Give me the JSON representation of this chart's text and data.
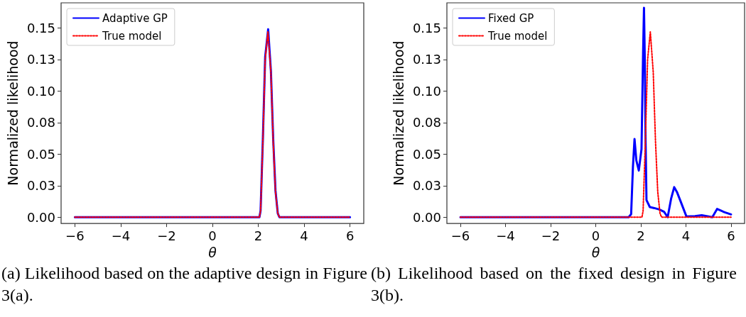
{
  "chart_data": [
    {
      "type": "line",
      "xlabel": "θ",
      "ylabel": "Normalized likelihood",
      "xlim": [
        -6.6,
        6.6
      ],
      "xticks": [
        -6,
        -4,
        -2,
        0,
        2,
        4,
        6
      ],
      "ylim": [
        -0.005,
        0.17
      ],
      "yticks": [
        {
          "value": 0,
          "label": "0.00"
        },
        {
          "value": 0.025,
          "label": "0.03"
        },
        {
          "value": 0.05,
          "label": "0.05"
        },
        {
          "value": 0.075,
          "label": "0.08"
        },
        {
          "value": 0.1,
          "label": "0.10"
        },
        {
          "value": 0.125,
          "label": "0.13"
        },
        {
          "value": 0.15,
          "label": "0.15"
        }
      ],
      "grid": false,
      "legend": "top left",
      "annotations": [
        "(a) Likelihood based on the adaptive design in Figure 3(a)."
      ],
      "series": [
        {
          "name": "Adaptive GP",
          "color": "#0000ff",
          "line_style": "solid",
          "x": [
            -6,
            2.05,
            2.1,
            2.2,
            2.3,
            2.43,
            2.55,
            2.65,
            2.75,
            2.85,
            2.92,
            6
          ],
          "values": [
            0,
            0,
            0.005,
            0.062,
            0.127,
            0.149,
            0.116,
            0.062,
            0.021,
            0.003,
            0,
            0
          ]
        },
        {
          "name": "True model",
          "color": "#ff0000",
          "line_style": "dotted",
          "x": [
            -6,
            2.05,
            2.1,
            2.2,
            2.3,
            2.42,
            2.55,
            2.65,
            2.75,
            2.85,
            2.92,
            6
          ],
          "values": [
            0,
            0,
            0.005,
            0.06,
            0.125,
            0.147,
            0.115,
            0.06,
            0.02,
            0.003,
            0,
            0
          ]
        }
      ]
    },
    {
      "type": "line",
      "xlabel": "θ",
      "ylabel": "Normalized likelihood",
      "xlim": [
        -6.6,
        6.6
      ],
      "xticks": [
        -6,
        -4,
        -2,
        0,
        2,
        4,
        6
      ],
      "ylim": [
        -0.005,
        0.17
      ],
      "yticks": [
        {
          "value": 0,
          "label": "0.00"
        },
        {
          "value": 0.025,
          "label": "0.03"
        },
        {
          "value": 0.05,
          "label": "0.05"
        },
        {
          "value": 0.075,
          "label": "0.08"
        },
        {
          "value": 0.1,
          "label": "0.10"
        },
        {
          "value": 0.125,
          "label": "0.13"
        },
        {
          "value": 0.15,
          "label": "0.15"
        }
      ],
      "grid": false,
      "legend": "top left",
      "annotations": [
        "(b) Likelihood based on the fixed design in Figure 3(b)."
      ],
      "series": [
        {
          "name": "Fixed GP",
          "color": "#0000ff",
          "line_style": "solid",
          "x": [
            -6,
            1.46,
            1.57,
            1.65,
            1.72,
            1.8,
            1.91,
            2.03,
            2.1,
            2.14,
            2.18,
            2.21,
            2.25,
            2.4,
            2.6,
            2.82,
            3.03,
            3.19,
            3.34,
            3.48,
            3.6,
            3.76,
            4.02,
            4.4,
            4.7,
            5.17,
            5.38,
            5.7,
            6
          ],
          "values": [
            0,
            0,
            0.0024,
            0.04,
            0.062,
            0.045,
            0.037,
            0.054,
            0.13,
            0.166,
            0.12,
            0.061,
            0.0136,
            0.008,
            0.0072,
            0.0061,
            0.0043,
            0,
            0.0145,
            0.0238,
            0.02,
            0.0127,
            0.0006,
            0.0008,
            0.0015,
            0,
            0.0065,
            0.004,
            0.0022
          ]
        },
        {
          "name": "True model",
          "color": "#ff0000",
          "line_style": "dotted",
          "x": [
            -6,
            2.05,
            2.1,
            2.2,
            2.3,
            2.42,
            2.55,
            2.65,
            2.75,
            2.85,
            2.92,
            6
          ],
          "values": [
            0,
            0,
            0.005,
            0.06,
            0.125,
            0.147,
            0.115,
            0.06,
            0.02,
            0.003,
            0,
            0
          ]
        }
      ]
    }
  ]
}
